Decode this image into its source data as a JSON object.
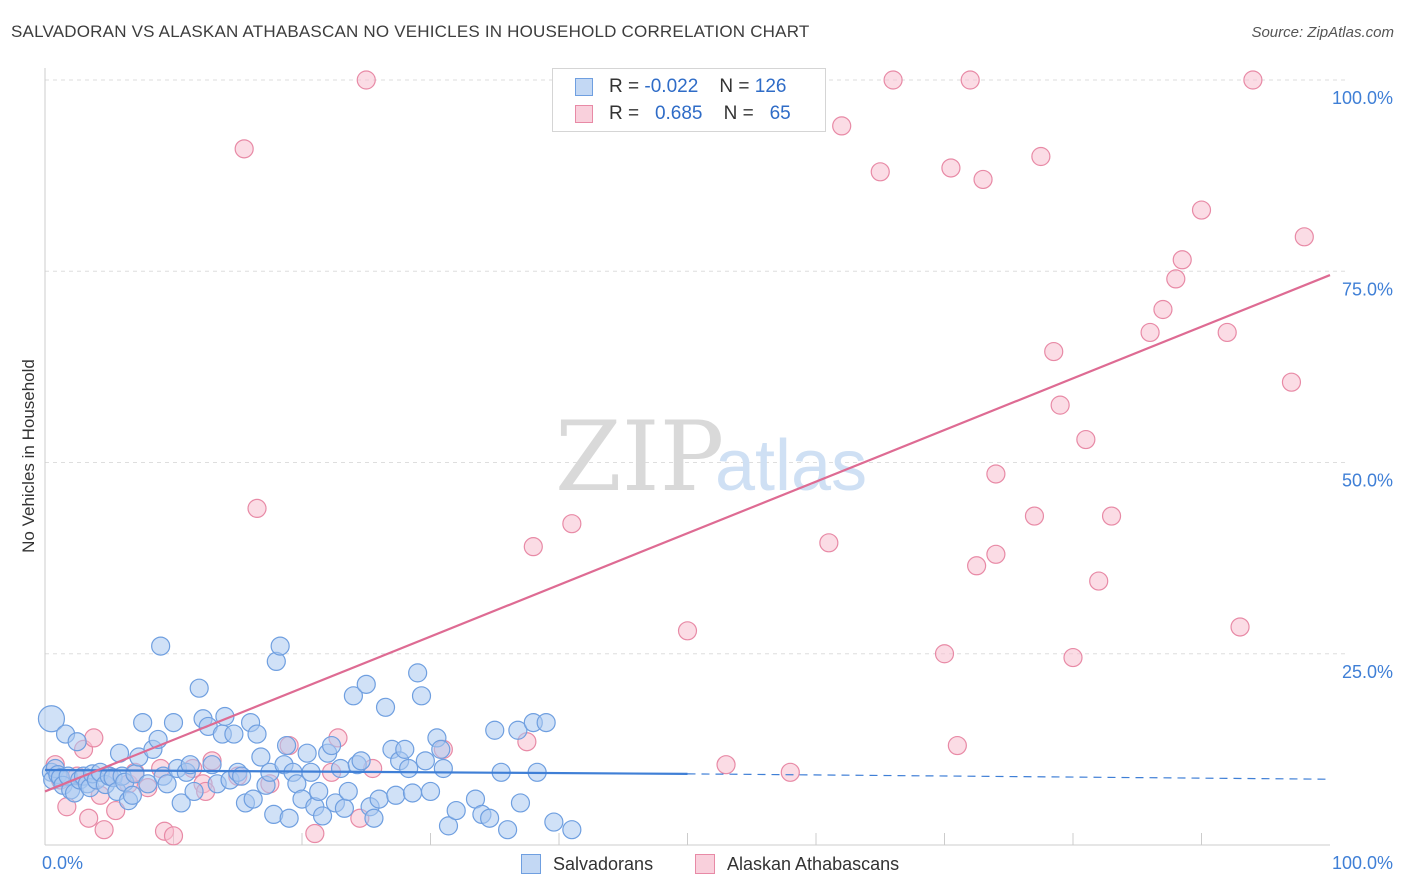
{
  "title": "SALVADORAN VS ALASKAN ATHABASCAN NO VEHICLES IN HOUSEHOLD CORRELATION CHART",
  "source": "Source: ZipAtlas.com",
  "watermark": {
    "zip": "ZIP",
    "atlas": "atlas"
  },
  "legend": {
    "rows": [
      {
        "r_label": "R =",
        "r_value": "-0.022",
        "n_label": "N =",
        "n_value": "126",
        "color": "#a9c8f0",
        "border": "#6f9fe0"
      },
      {
        "r_label": "R =",
        "r_value": "0.685",
        "n_label": "N =",
        "n_value": "65",
        "color": "#f7c0d0",
        "border": "#e88aa6"
      }
    ]
  },
  "bottom_legend": {
    "salvadorans": "Salvadorans",
    "alaskan": "Alaskan Athabascans"
  },
  "chart_data": {
    "type": "scatter",
    "title": "SALVADORAN VS ALASKAN ATHABASCAN NO VEHICLES IN HOUSEHOLD CORRELATION CHART",
    "xlabel": "",
    "ylabel": "No Vehicles in Household",
    "xlim": [
      0,
      100
    ],
    "ylim": [
      0,
      100
    ],
    "x_tick_labels": [
      "0.0%",
      "100.0%"
    ],
    "y_tick_labels": [
      "100.0%",
      "75.0%",
      "50.0%",
      "25.0%"
    ],
    "y_ticks": [
      100,
      75,
      50,
      25
    ],
    "grid": true,
    "series": [
      {
        "name": "Salvadorans",
        "color": "#6f9fe0",
        "fill": "#a9c8f0",
        "trend": {
          "x0": 0,
          "y0": 9.8,
          "x1": 50,
          "y1": 9.3,
          "dash_to": 100,
          "dash_y": 8.6
        },
        "points": [
          [
            0.5,
            16.5
          ],
          [
            0.5,
            9.5
          ],
          [
            0.6,
            8.5
          ],
          [
            0.8,
            10
          ],
          [
            1,
            9.2
          ],
          [
            1.2,
            8.8
          ],
          [
            1.4,
            7.8
          ],
          [
            1.6,
            14.5
          ],
          [
            1.8,
            9
          ],
          [
            2,
            7.2
          ],
          [
            2.3,
            6.8
          ],
          [
            2.5,
            13.5
          ],
          [
            2.7,
            8.5
          ],
          [
            3,
            9
          ],
          [
            3.3,
            8
          ],
          [
            3.5,
            7.5
          ],
          [
            3.7,
            9.3
          ],
          [
            4,
            8.5
          ],
          [
            4.3,
            9.5
          ],
          [
            4.7,
            7.9
          ],
          [
            5,
            9
          ],
          [
            5.3,
            8.8
          ],
          [
            5.6,
            7
          ],
          [
            5.8,
            12
          ],
          [
            6,
            9
          ],
          [
            6.2,
            8.2
          ],
          [
            6.5,
            5.8
          ],
          [
            6.8,
            6.5
          ],
          [
            7,
            9.3
          ],
          [
            7.3,
            11.5
          ],
          [
            7.6,
            16
          ],
          [
            8,
            8
          ],
          [
            8.4,
            12.5
          ],
          [
            8.8,
            13.8
          ],
          [
            9,
            26
          ],
          [
            9.2,
            9
          ],
          [
            9.5,
            8
          ],
          [
            10,
            16
          ],
          [
            10.3,
            10
          ],
          [
            10.6,
            5.5
          ],
          [
            11,
            9.5
          ],
          [
            11.3,
            10.5
          ],
          [
            11.6,
            7
          ],
          [
            12,
            20.5
          ],
          [
            12.3,
            16.5
          ],
          [
            12.7,
            15.5
          ],
          [
            13,
            10.5
          ],
          [
            13.4,
            8
          ],
          [
            13.8,
            14.5
          ],
          [
            14,
            16.8
          ],
          [
            14.4,
            8.5
          ],
          [
            14.7,
            14.5
          ],
          [
            15,
            9.5
          ],
          [
            15.3,
            9
          ],
          [
            15.6,
            5.5
          ],
          [
            16,
            16
          ],
          [
            16.2,
            6
          ],
          [
            16.5,
            14.5
          ],
          [
            16.8,
            11.5
          ],
          [
            17.2,
            7.8
          ],
          [
            17.5,
            9.5
          ],
          [
            17.8,
            4
          ],
          [
            18,
            24
          ],
          [
            18.3,
            26
          ],
          [
            18.6,
            10.5
          ],
          [
            18.8,
            13
          ],
          [
            19,
            3.5
          ],
          [
            19.3,
            9.5
          ],
          [
            19.6,
            8
          ],
          [
            20,
            6
          ],
          [
            20.4,
            12
          ],
          [
            20.7,
            9.5
          ],
          [
            21,
            5
          ],
          [
            21.3,
            7
          ],
          [
            21.6,
            3.8
          ],
          [
            22,
            12
          ],
          [
            22.3,
            13
          ],
          [
            22.6,
            5.5
          ],
          [
            23,
            10
          ],
          [
            23.3,
            4.8
          ],
          [
            23.6,
            7
          ],
          [
            24,
            19.5
          ],
          [
            24.3,
            10.5
          ],
          [
            24.6,
            11
          ],
          [
            25,
            21
          ],
          [
            25.3,
            5
          ],
          [
            25.6,
            3.5
          ],
          [
            26,
            6
          ],
          [
            26.5,
            18
          ],
          [
            27,
            12.5
          ],
          [
            27.3,
            6.5
          ],
          [
            27.6,
            11
          ],
          [
            28,
            12.5
          ],
          [
            28.3,
            10
          ],
          [
            28.6,
            6.8
          ],
          [
            29,
            22.5
          ],
          [
            29.3,
            19.5
          ],
          [
            29.6,
            11
          ],
          [
            30,
            7
          ],
          [
            30.5,
            14
          ],
          [
            30.8,
            12.5
          ],
          [
            31,
            10
          ],
          [
            31.4,
            2.5
          ],
          [
            32,
            4.5
          ],
          [
            33.5,
            6
          ],
          [
            34,
            4
          ],
          [
            34.6,
            3.5
          ],
          [
            35,
            15
          ],
          [
            35.5,
            9.5
          ],
          [
            36,
            2
          ],
          [
            36.8,
            15
          ],
          [
            37,
            5.5
          ],
          [
            38,
            16
          ],
          [
            38.3,
            9.5
          ],
          [
            39,
            16
          ],
          [
            39.6,
            3
          ],
          [
            41,
            2
          ]
        ]
      },
      {
        "name": "Alaskan Athabascans",
        "color": "#e88aa6",
        "fill": "#f7c0d0",
        "trend": {
          "x0": 0,
          "y0": 7,
          "x1": 100,
          "y1": 74.5
        },
        "points": [
          [
            0.8,
            10.5
          ],
          [
            1.2,
            8.5
          ],
          [
            1.7,
            5
          ],
          [
            2.5,
            9
          ],
          [
            3,
            12.5
          ],
          [
            3.4,
            3.5
          ],
          [
            3.8,
            14
          ],
          [
            4.3,
            6.5
          ],
          [
            4.6,
            2
          ],
          [
            5,
            9
          ],
          [
            5.5,
            4.5
          ],
          [
            6.5,
            8
          ],
          [
            7,
            9.5
          ],
          [
            8,
            7.5
          ],
          [
            9,
            10
          ],
          [
            9.3,
            1.8
          ],
          [
            10,
            1.2
          ],
          [
            11.5,
            10
          ],
          [
            12.3,
            8
          ],
          [
            12.5,
            7
          ],
          [
            13,
            11
          ],
          [
            15,
            9
          ],
          [
            15.5,
            91
          ],
          [
            16.5,
            44
          ],
          [
            17.5,
            8
          ],
          [
            19,
            13
          ],
          [
            21,
            1.5
          ],
          [
            22.3,
            9.5
          ],
          [
            22.8,
            14
          ],
          [
            24.5,
            3.5
          ],
          [
            25,
            100
          ],
          [
            25.5,
            10
          ],
          [
            31,
            12.5
          ],
          [
            37.5,
            13.5
          ],
          [
            38,
            39
          ],
          [
            41,
            42
          ],
          [
            50,
            28
          ],
          [
            53,
            10.5
          ],
          [
            58,
            9.5
          ],
          [
            61,
            39.5
          ],
          [
            62,
            94
          ],
          [
            65,
            88
          ],
          [
            66,
            100
          ],
          [
            70,
            25
          ],
          [
            70.5,
            88.5
          ],
          [
            71,
            13
          ],
          [
            72,
            100
          ],
          [
            72.5,
            36.5
          ],
          [
            73,
            87
          ],
          [
            74,
            48.5
          ],
          [
            74,
            38
          ],
          [
            77,
            43
          ],
          [
            77.5,
            90
          ],
          [
            78.5,
            64.5
          ],
          [
            79,
            57.5
          ],
          [
            80,
            24.5
          ],
          [
            81,
            53
          ],
          [
            82,
            34.5
          ],
          [
            83,
            43
          ],
          [
            86,
            67
          ],
          [
            87,
            70
          ],
          [
            88,
            74
          ],
          [
            88.5,
            76.5
          ],
          [
            90,
            83
          ],
          [
            92,
            67
          ],
          [
            97,
            60.5
          ],
          [
            98,
            79.5
          ],
          [
            93,
            28.5
          ],
          [
            94,
            100
          ]
        ]
      }
    ]
  }
}
